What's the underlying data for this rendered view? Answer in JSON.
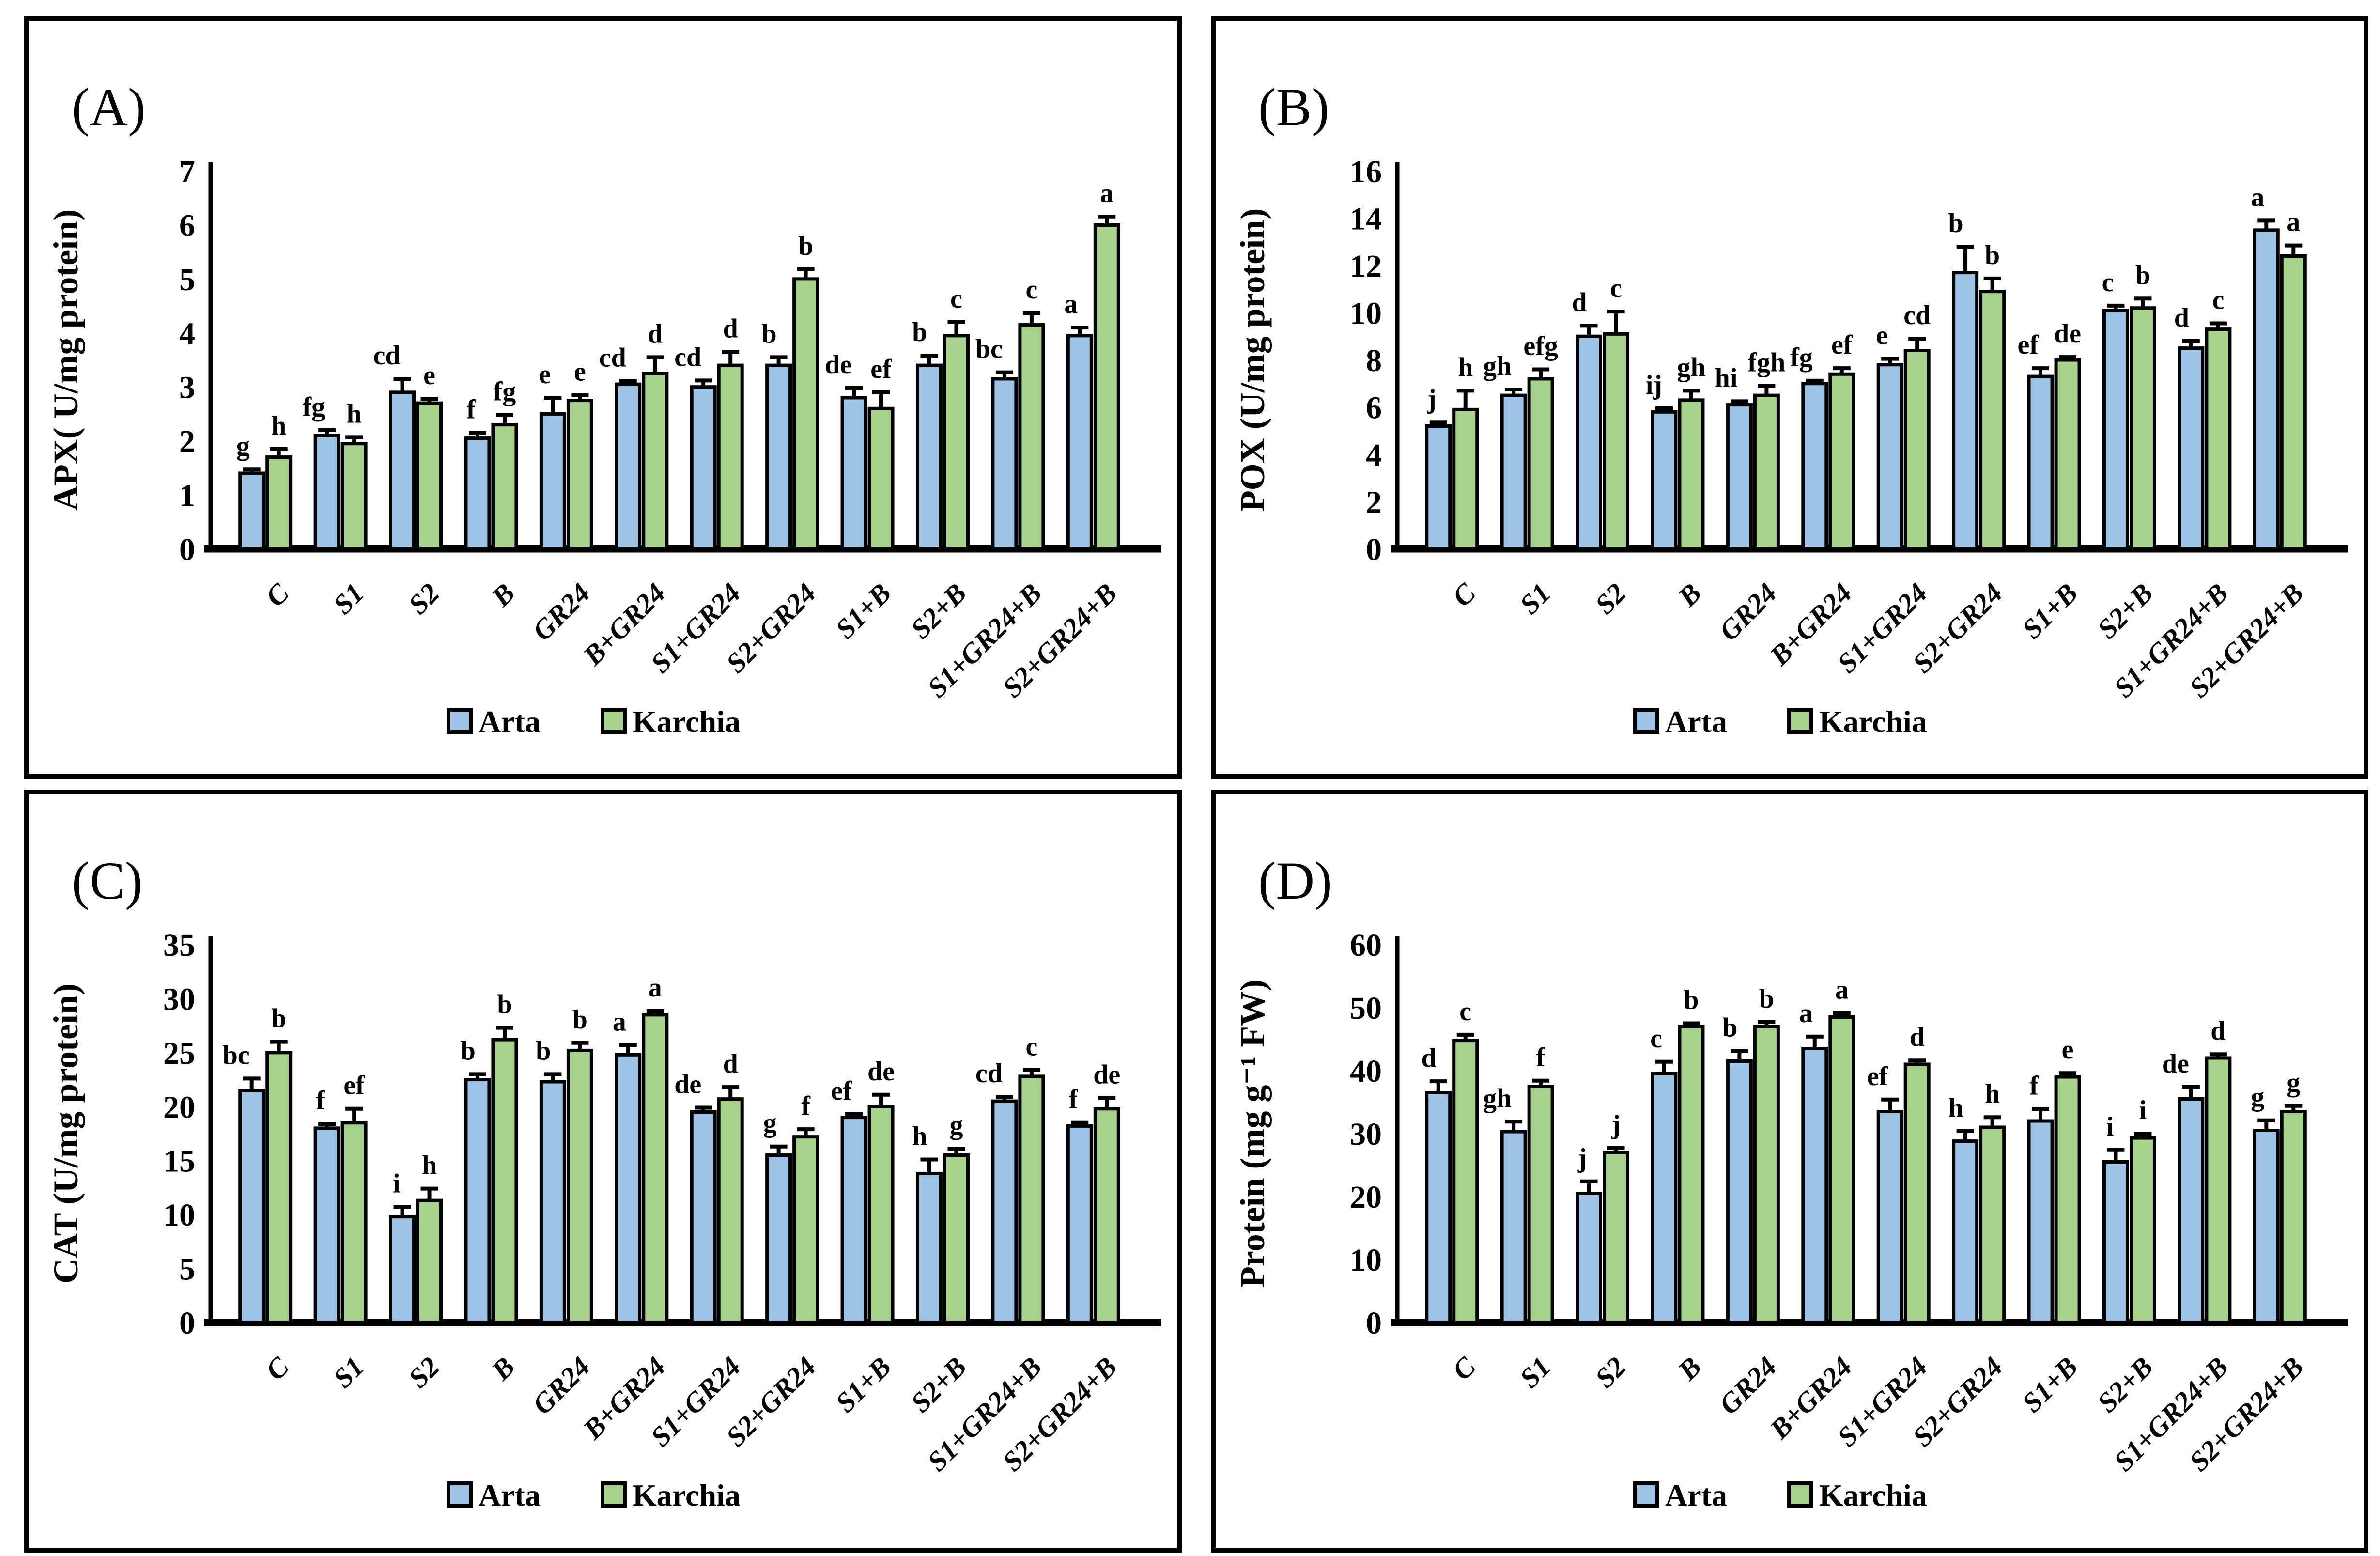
{
  "figure": {
    "background": "#ffffff",
    "series_colors": {
      "arta": "#9DC3E6",
      "karchia": "#A9D18E"
    },
    "bar_border_color": "#000000",
    "categories": [
      "C",
      "S1",
      "S2",
      "B",
      "GR24",
      "B+GR24",
      "S1+GR24",
      "S2+GR24",
      "S1+B",
      "S2+B",
      "S1+GR24+B",
      "S2+GR24+B"
    ],
    "legend": {
      "items": [
        {
          "label": "Arta",
          "color": "#9DC3E6"
        },
        {
          "label": "Karchia",
          "color": "#A9D18E"
        }
      ]
    }
  },
  "chart_data": [
    {
      "panel_label": "(A)",
      "type": "bar",
      "title": "",
      "ylabel": "APX( U/mg protein)",
      "xlabel": "",
      "ylim": [
        0,
        7
      ],
      "ytick_step": 1,
      "grid": false,
      "legend_position": "bottom",
      "categories": [
        "C",
        "S1",
        "S2",
        "B",
        "GR24",
        "B+GR24",
        "S1+GR24",
        "S2+GR24",
        "S1+B",
        "S2+B",
        "S1+GR24+B",
        "S2+GR24+B"
      ],
      "series": [
        {
          "name": "Arta",
          "color": "#9DC3E6",
          "values": [
            1.4,
            2.1,
            2.9,
            2.05,
            2.5,
            3.05,
            3.0,
            3.4,
            2.8,
            3.4,
            3.15,
            3.95
          ],
          "errors": [
            0.07,
            0.1,
            0.25,
            0.1,
            0.3,
            0.06,
            0.12,
            0.15,
            0.18,
            0.18,
            0.12,
            0.15
          ],
          "letters": [
            "g",
            "fg",
            "cd",
            "f",
            "e",
            "cd",
            "cd",
            "b",
            "de",
            "b",
            "bc",
            "a"
          ]
        },
        {
          "name": "Karchia",
          "color": "#A9D18E",
          "values": [
            1.7,
            1.95,
            2.7,
            2.3,
            2.75,
            3.25,
            3.4,
            5.0,
            2.6,
            3.95,
            4.15,
            6.0
          ],
          "errors": [
            0.15,
            0.12,
            0.08,
            0.18,
            0.1,
            0.3,
            0.25,
            0.18,
            0.3,
            0.25,
            0.22,
            0.15
          ],
          "letters": [
            "h",
            "h",
            "e",
            "fg",
            "e",
            "d",
            "d",
            "b",
            "ef",
            "c",
            "c",
            "a"
          ]
        }
      ]
    },
    {
      "panel_label": "(B)",
      "type": "bar",
      "title": "",
      "ylabel": "POX (U/mg protein)",
      "xlabel": "",
      "ylim": [
        0,
        16
      ],
      "ytick_step": 2,
      "grid": false,
      "legend_position": "bottom",
      "categories": [
        "C",
        "S1",
        "S2",
        "B",
        "GR24",
        "B+GR24",
        "S1+GR24",
        "S2+GR24",
        "S1+B",
        "S2+B",
        "S1+GR24+B",
        "S2+GR24+B"
      ],
      "series": [
        {
          "name": "Arta",
          "color": "#9DC3E6",
          "values": [
            5.2,
            6.5,
            9.0,
            5.8,
            6.1,
            7.0,
            7.8,
            11.7,
            7.3,
            10.1,
            8.5,
            13.5
          ],
          "errors": [
            0.15,
            0.25,
            0.45,
            0.15,
            0.15,
            0.12,
            0.25,
            1.1,
            0.35,
            0.2,
            0.3,
            0.4
          ],
          "letters": [
            "j",
            "gh",
            "d",
            "ij",
            "hi",
            "fg",
            "e",
            "b",
            "ef",
            "c",
            "d",
            "a"
          ]
        },
        {
          "name": "Karchia",
          "color": "#A9D18E",
          "values": [
            5.9,
            7.2,
            9.1,
            6.3,
            6.5,
            7.4,
            8.4,
            10.9,
            8.0,
            10.2,
            9.3,
            12.4
          ],
          "errors": [
            0.8,
            0.4,
            0.95,
            0.4,
            0.4,
            0.25,
            0.5,
            0.55,
            0.12,
            0.4,
            0.25,
            0.45
          ],
          "letters": [
            "h",
            "efg",
            "c",
            "gh",
            "fgh",
            "ef",
            "cd",
            "b",
            "de",
            "b",
            "c",
            "a"
          ]
        }
      ]
    },
    {
      "panel_label": "(C)",
      "type": "bar",
      "title": "",
      "ylabel": "CAT (U/mg protein)",
      "xlabel": "",
      "ylim": [
        0,
        35
      ],
      "ytick_step": 5,
      "grid": false,
      "legend_position": "bottom",
      "categories": [
        "C",
        "S1",
        "S2",
        "B",
        "GR24",
        "B+GR24",
        "S1+GR24",
        "S2+GR24",
        "S1+B",
        "S2+B",
        "S1+GR24+B",
        "S2+GR24+B"
      ],
      "series": [
        {
          "name": "Arta",
          "color": "#9DC3E6",
          "values": [
            21.5,
            18.0,
            9.8,
            22.5,
            22.3,
            24.8,
            19.5,
            15.5,
            19.0,
            13.8,
            20.5,
            18.2
          ],
          "errors": [
            1.1,
            0.4,
            0.9,
            0.5,
            0.7,
            0.9,
            0.4,
            0.8,
            0.3,
            1.3,
            0.4,
            0.3
          ],
          "letters": [
            "bc",
            "f",
            "i",
            "b",
            "b",
            "a",
            "de",
            "g",
            "ef",
            "h",
            "cd",
            "f"
          ]
        },
        {
          "name": "Karchia",
          "color": "#A9D18E",
          "values": [
            25.0,
            18.5,
            11.3,
            26.2,
            25.2,
            28.5,
            20.7,
            17.2,
            20.0,
            15.5,
            22.8,
            19.8
          ],
          "errors": [
            1.0,
            1.3,
            1.1,
            1.1,
            0.7,
            0.35,
            1.1,
            0.7,
            1.1,
            0.6,
            0.6,
            1.0
          ],
          "letters": [
            "b",
            "ef",
            "h",
            "b",
            "b",
            "a",
            "d",
            "f",
            "de",
            "g",
            "c",
            "de"
          ]
        }
      ]
    },
    {
      "panel_label": "(D)",
      "type": "bar",
      "title": "",
      "ylabel": "Protein (mg g⁻¹ FW)",
      "xlabel": "",
      "ylim": [
        0,
        60
      ],
      "ytick_step": 10,
      "grid": false,
      "legend_position": "bottom",
      "categories": [
        "C",
        "S1",
        "S2",
        "B",
        "GR24",
        "B+GR24",
        "S1+GR24",
        "S2+GR24",
        "S1+B",
        "S2+B",
        "S1+GR24+B",
        "S2+GR24+B"
      ],
      "series": [
        {
          "name": "Arta",
          "color": "#9DC3E6",
          "values": [
            36.5,
            30.3,
            20.5,
            39.5,
            41.5,
            43.5,
            33.5,
            28.8,
            32.0,
            25.5,
            35.5,
            30.5
          ],
          "errors": [
            1.8,
            1.6,
            1.9,
            1.9,
            1.6,
            1.9,
            1.9,
            1.6,
            1.9,
            1.9,
            1.9,
            1.6
          ],
          "letters": [
            "d",
            "gh",
            "j",
            "c",
            "b",
            "a",
            "ef",
            "h",
            "f",
            "i",
            "de",
            "g"
          ]
        },
        {
          "name": "Karchia",
          "color": "#A9D18E",
          "values": [
            44.8,
            37.5,
            27.0,
            47.0,
            47.0,
            48.5,
            41.0,
            31.0,
            39.0,
            29.3,
            42.0,
            33.5
          ],
          "errors": [
            0.9,
            0.9,
            0.7,
            0.5,
            0.7,
            0.6,
            0.6,
            1.6,
            0.6,
            0.7,
            0.6,
            0.9
          ],
          "letters": [
            "c",
            "f",
            "j",
            "b",
            "b",
            "a",
            "d",
            "h",
            "e",
            "i",
            "d",
            "g"
          ]
        }
      ]
    }
  ]
}
